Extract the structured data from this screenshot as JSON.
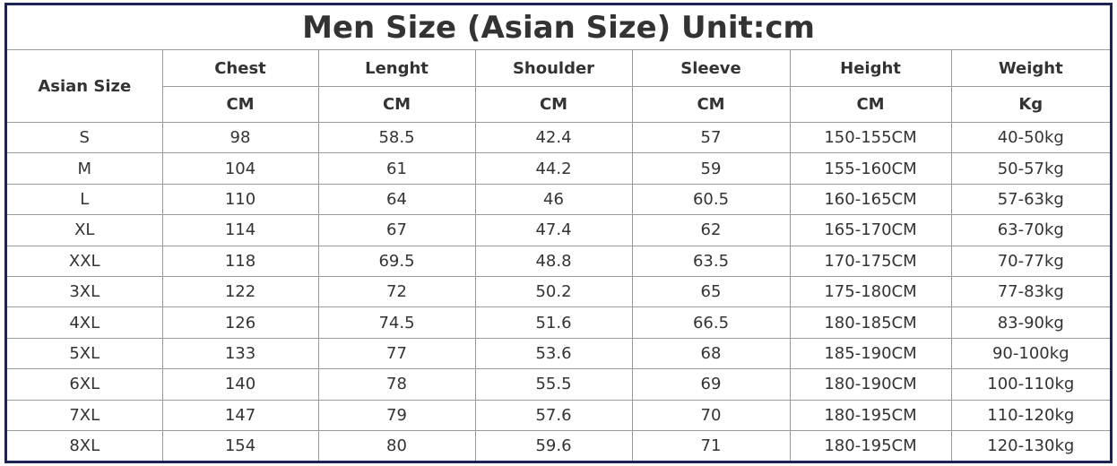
{
  "title": "Men Size (Asian Size) Unit:cm",
  "header": {
    "first": "Asian Size",
    "columns": [
      {
        "name": "Chest",
        "unit": "CM"
      },
      {
        "name": "Lenght",
        "unit": "CM"
      },
      {
        "name": "Shoulder",
        "unit": "CM"
      },
      {
        "name": "Sleeve",
        "unit": "CM"
      },
      {
        "name": "Height",
        "unit": "CM"
      },
      {
        "name": "Weight",
        "unit": "Kg"
      }
    ]
  },
  "rows": [
    [
      "S",
      "98",
      "58.5",
      "42.4",
      "57",
      "150-155CM",
      "40-50kg"
    ],
    [
      "M",
      "104",
      "61",
      "44.2",
      "59",
      "155-160CM",
      "50-57kg"
    ],
    [
      "L",
      "110",
      "64",
      "46",
      "60.5",
      "160-165CM",
      "57-63kg"
    ],
    [
      "XL",
      "114",
      "67",
      "47.4",
      "62",
      "165-170CM",
      "63-70kg"
    ],
    [
      "XXL",
      "118",
      "69.5",
      "48.8",
      "63.5",
      "170-175CM",
      "70-77kg"
    ],
    [
      "3XL",
      "122",
      "72",
      "50.2",
      "65",
      "175-180CM",
      "77-83kg"
    ],
    [
      "4XL",
      "126",
      "74.5",
      "51.6",
      "66.5",
      "180-185CM",
      "83-90kg"
    ],
    [
      "5XL",
      "133",
      "77",
      "53.6",
      "68",
      "185-190CM",
      "90-100kg"
    ],
    [
      "6XL",
      "140",
      "78",
      "55.5",
      "69",
      "180-190CM",
      "100-110kg"
    ],
    [
      "7XL",
      "147",
      "79",
      "57.6",
      "70",
      "180-195CM",
      "110-120kg"
    ],
    [
      "8XL",
      "154",
      "80",
      "59.6",
      "71",
      "180-195CM",
      "120-130kg"
    ]
  ]
}
